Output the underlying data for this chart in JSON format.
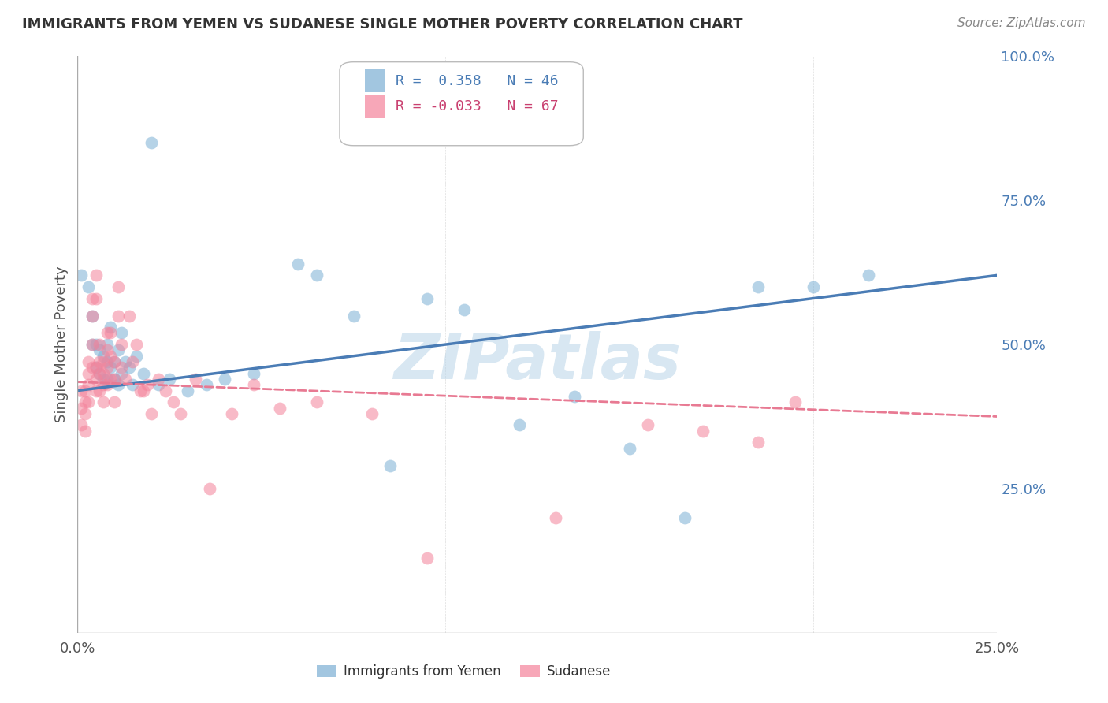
{
  "title": "IMMIGRANTS FROM YEMEN VS SUDANESE SINGLE MOTHER POVERTY CORRELATION CHART",
  "source": "Source: ZipAtlas.com",
  "ylabel": "Single Mother Poverty",
  "xlim": [
    0.0,
    0.25
  ],
  "ylim": [
    0.0,
    1.0
  ],
  "xtick_positions": [
    0.0,
    0.05,
    0.1,
    0.15,
    0.2,
    0.25
  ],
  "xticklabels": [
    "0.0%",
    "",
    "",
    "",
    "",
    "25.0%"
  ],
  "ytick_positions": [
    0.0,
    0.25,
    0.5,
    0.75,
    1.0
  ],
  "yticklabels_right": [
    "",
    "25.0%",
    "50.0%",
    "75.0%",
    "100.0%"
  ],
  "legend_blue_r": "R =  0.358",
  "legend_blue_n": "N = 46",
  "legend_pink_r": "R = -0.033",
  "legend_pink_n": "N = 67",
  "blue_color": "#7BAFD4",
  "pink_color": "#F4829A",
  "blue_line_color": "#4A7CB5",
  "pink_line_color": "#E87A93",
  "watermark": "ZIPatlas",
  "watermark_color": "#B8D4E8",
  "blue_x": [
    0.001,
    0.003,
    0.004,
    0.004,
    0.005,
    0.005,
    0.006,
    0.006,
    0.007,
    0.007,
    0.008,
    0.008,
    0.008,
    0.009,
    0.009,
    0.01,
    0.01,
    0.011,
    0.011,
    0.012,
    0.012,
    0.013,
    0.014,
    0.015,
    0.016,
    0.018,
    0.02,
    0.022,
    0.025,
    0.03,
    0.035,
    0.04,
    0.048,
    0.06,
    0.065,
    0.075,
    0.085,
    0.095,
    0.105,
    0.12,
    0.135,
    0.15,
    0.165,
    0.185,
    0.2,
    0.215
  ],
  "blue_y": [
    0.62,
    0.6,
    0.55,
    0.5,
    0.5,
    0.46,
    0.49,
    0.45,
    0.48,
    0.44,
    0.47,
    0.44,
    0.5,
    0.46,
    0.53,
    0.44,
    0.47,
    0.43,
    0.49,
    0.52,
    0.45,
    0.47,
    0.46,
    0.43,
    0.48,
    0.45,
    0.85,
    0.43,
    0.44,
    0.42,
    0.43,
    0.44,
    0.45,
    0.64,
    0.62,
    0.55,
    0.29,
    0.58,
    0.56,
    0.36,
    0.41,
    0.32,
    0.2,
    0.6,
    0.6,
    0.62
  ],
  "pink_x": [
    0.001,
    0.001,
    0.001,
    0.002,
    0.002,
    0.002,
    0.002,
    0.003,
    0.003,
    0.003,
    0.003,
    0.004,
    0.004,
    0.004,
    0.004,
    0.005,
    0.005,
    0.005,
    0.005,
    0.005,
    0.006,
    0.006,
    0.006,
    0.006,
    0.007,
    0.007,
    0.007,
    0.007,
    0.008,
    0.008,
    0.008,
    0.008,
    0.009,
    0.009,
    0.009,
    0.01,
    0.01,
    0.01,
    0.011,
    0.011,
    0.012,
    0.012,
    0.013,
    0.014,
    0.015,
    0.016,
    0.017,
    0.018,
    0.019,
    0.02,
    0.022,
    0.024,
    0.026,
    0.028,
    0.032,
    0.036,
    0.042,
    0.048,
    0.055,
    0.065,
    0.08,
    0.095,
    0.13,
    0.155,
    0.17,
    0.185,
    0.195
  ],
  "pink_y": [
    0.42,
    0.39,
    0.36,
    0.42,
    0.4,
    0.38,
    0.35,
    0.47,
    0.45,
    0.43,
    0.4,
    0.58,
    0.55,
    0.5,
    0.46,
    0.62,
    0.58,
    0.46,
    0.44,
    0.42,
    0.47,
    0.5,
    0.45,
    0.42,
    0.47,
    0.45,
    0.43,
    0.4,
    0.52,
    0.49,
    0.46,
    0.43,
    0.52,
    0.48,
    0.44,
    0.47,
    0.44,
    0.4,
    0.6,
    0.55,
    0.5,
    0.46,
    0.44,
    0.55,
    0.47,
    0.5,
    0.42,
    0.42,
    0.43,
    0.38,
    0.44,
    0.42,
    0.4,
    0.38,
    0.44,
    0.25,
    0.38,
    0.43,
    0.39,
    0.4,
    0.38,
    0.13,
    0.2,
    0.36,
    0.35,
    0.33,
    0.4
  ],
  "background_color": "#FFFFFF",
  "grid_color": "#CCCCCC"
}
